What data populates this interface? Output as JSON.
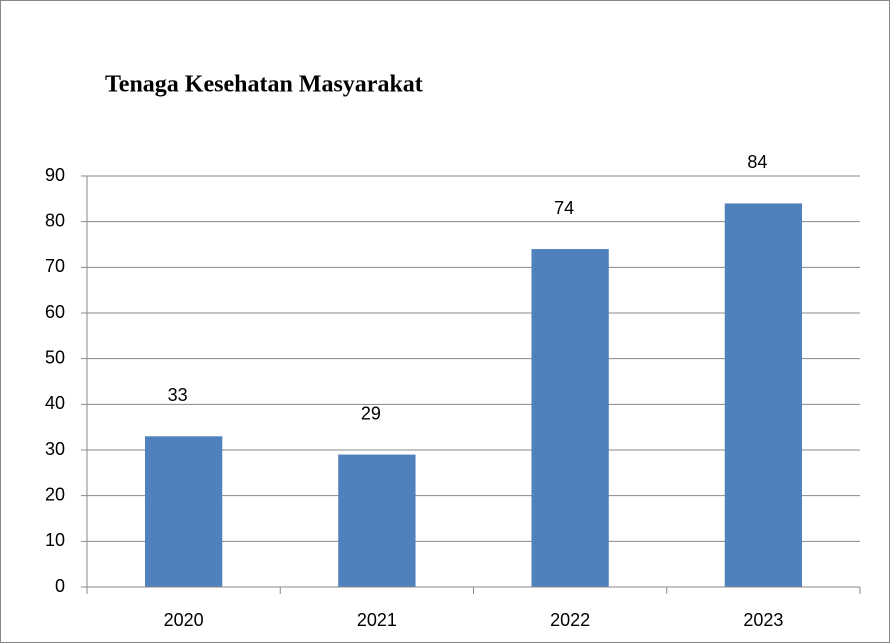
{
  "chart_data": {
    "type": "bar",
    "title": "Tenaga Kesehatan Masyarakat",
    "categories": [
      "2020",
      "2021",
      "2022",
      "2023"
    ],
    "values": [
      33,
      29,
      74,
      84
    ],
    "color": "#4f81bd",
    "ylim": [
      0,
      90
    ],
    "yticks": [
      0,
      10,
      20,
      30,
      40,
      50,
      60,
      70,
      80,
      90
    ],
    "grid": true,
    "data_labels": true
  }
}
